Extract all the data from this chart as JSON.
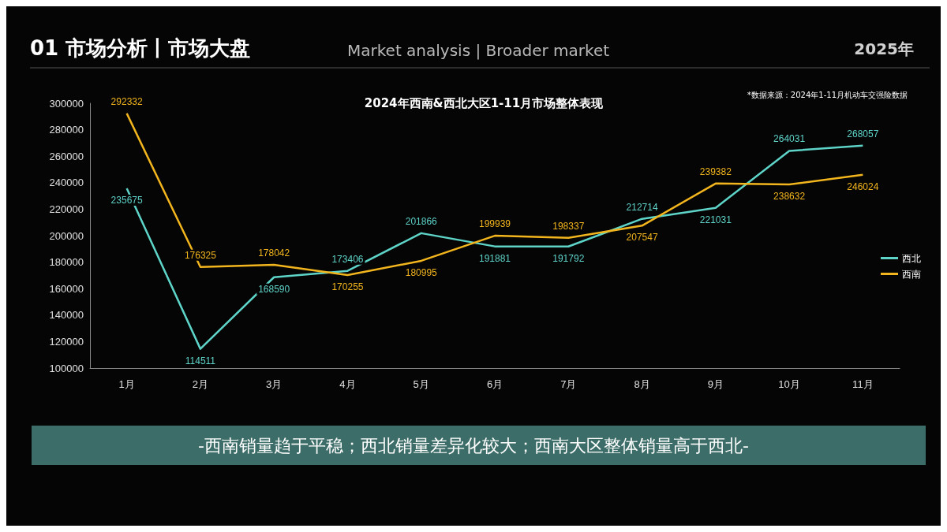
{
  "chart_data": {
    "type": "line",
    "title": "2024年西南&西北大区1-11月市场整体表现",
    "categories": [
      "1月",
      "2月",
      "3月",
      "4月",
      "5月",
      "6月",
      "7月",
      "8月",
      "9月",
      "10月",
      "11月"
    ],
    "series": [
      {
        "name": "西北",
        "color": "#5ed4c9",
        "values": [
          235675,
          114511,
          168590,
          173406,
          201866,
          191881,
          191792,
          212714,
          221031,
          264031,
          268057
        ]
      },
      {
        "name": "西南",
        "color": "#f2b51d",
        "values": [
          292332,
          176325,
          178042,
          170255,
          180995,
          199939,
          198337,
          207547,
          239382,
          238632,
          246024
        ]
      }
    ],
    "ylim": [
      100000,
      300000
    ],
    "yticks": [
      100000,
      120000,
      140000,
      160000,
      180000,
      200000,
      220000,
      240000,
      260000,
      280000,
      300000
    ],
    "data_labels": true,
    "grid": false,
    "legend": "right",
    "marker": "none",
    "line_style": "solid",
    "annotations": [
      "01 市场分析丨市场大盘",
      "Market analysis | Broader market",
      "2025年",
      "*数据来源：2024年1-11月机动车交强险数据",
      "-西南销量趋于平稳；西北销量差异化较大；西南大区整体销量高于西北-"
    ]
  }
}
